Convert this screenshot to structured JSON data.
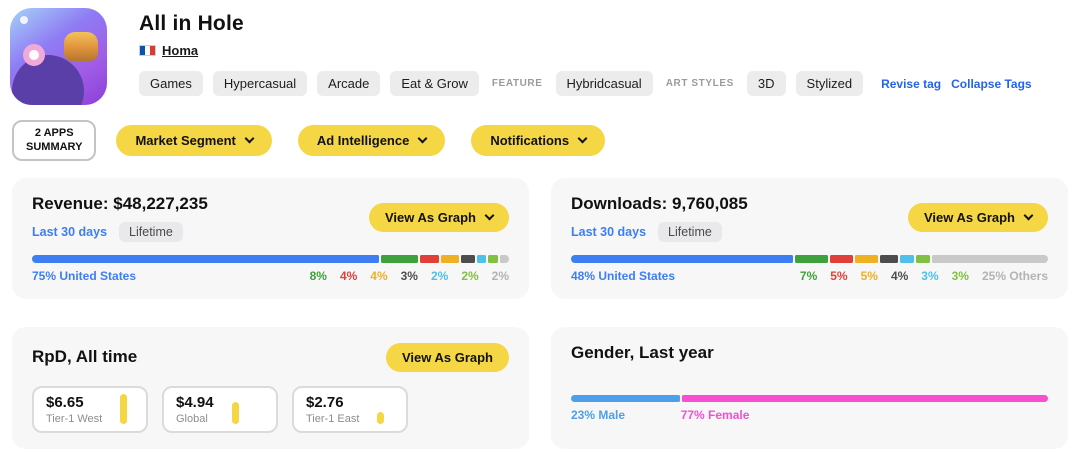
{
  "colors": {
    "accent-yellow": "#F5D644",
    "link-blue": "#2563EB",
    "bar-blue": "#3D7EF2",
    "card-bg": "#F7F7F8"
  },
  "header": {
    "app_title": "All in Hole",
    "publisher": "Homa",
    "publisher_flag": "france-flag",
    "category_tags": [
      "Games",
      "Hypercasual",
      "Arcade",
      "Eat & Grow"
    ],
    "feature_label": "FEATURE",
    "feature_tags": [
      "Hybridcasual"
    ],
    "art_styles_label": "ART STYLES",
    "art_style_tags": [
      "3D",
      "Stylized"
    ],
    "revise_tag_link": "Revise tag",
    "collapse_tags_link": "Collapse Tags"
  },
  "toolbar": {
    "apps_summary_line1": "2 APPS",
    "apps_summary_line2": "SUMMARY",
    "dropdowns": [
      "Market Segment",
      "Ad Intelligence",
      "Notifications"
    ]
  },
  "cards": {
    "revenue": {
      "title": "Revenue: $48,227,235",
      "tabs": [
        "Last 30 days",
        "Lifetime"
      ],
      "active_tab": "Last 30 days",
      "view_as_graph": "View As Graph"
    },
    "downloads": {
      "title": "Downloads: 9,760,085",
      "tabs": [
        "Last 30 days",
        "Lifetime"
      ],
      "active_tab": "Last 30 days",
      "view_as_graph": "View As Graph"
    },
    "rpd": {
      "title": "RpD, All time",
      "view_as_graph": "View As Graph"
    },
    "gender": {
      "title": "Gender, Last year"
    }
  },
  "chart_data": [
    {
      "id": "revenue-by-country",
      "type": "stacked-bar",
      "title": "Revenue: $48,227,235",
      "unit": "%",
      "segments": [
        {
          "label": "75% United States",
          "value": 75,
          "color": "#3D7EF2"
        },
        {
          "label": "8%",
          "value": 8,
          "color": "#3FA13C"
        },
        {
          "label": "4%",
          "value": 4,
          "color": "#E04038"
        },
        {
          "label": "4%",
          "value": 4,
          "color": "#EFB024"
        },
        {
          "label": "3%",
          "value": 3,
          "color": "#4D4D4D"
        },
        {
          "label": "2%",
          "value": 2,
          "color": "#4FC0E8"
        },
        {
          "label": "2%",
          "value": 2,
          "color": "#82C043"
        },
        {
          "label": "2%",
          "value": 2,
          "color": "#C9C9C9",
          "label_color": "#B3B3B3"
        }
      ]
    },
    {
      "id": "downloads-by-country",
      "type": "stacked-bar",
      "title": "Downloads: 9,760,085",
      "unit": "%",
      "segments": [
        {
          "label": "48% United States",
          "value": 48,
          "color": "#3D7EF2"
        },
        {
          "label": "7%",
          "value": 7,
          "color": "#3FA13C"
        },
        {
          "label": "5%",
          "value": 5,
          "color": "#E04038"
        },
        {
          "label": "5%",
          "value": 5,
          "color": "#EFB024"
        },
        {
          "label": "4%",
          "value": 4,
          "color": "#4D4D4D"
        },
        {
          "label": "3%",
          "value": 3,
          "color": "#4FC0E8"
        },
        {
          "label": "3%",
          "value": 3,
          "color": "#82C043"
        },
        {
          "label": "25% Others",
          "value": 25,
          "color": "#C9C9C9",
          "label_color": "#B3B3B3"
        }
      ]
    },
    {
      "id": "rpd-all-time",
      "type": "stat-tiles",
      "title": "RpD, All time",
      "tiles": [
        {
          "value": "$6.65",
          "label": "Tier-1 West",
          "fill_pct": 100
        },
        {
          "value": "$4.94",
          "label": "Global",
          "fill_pct": 74
        },
        {
          "value": "$2.76",
          "label": "Tier-1 East",
          "fill_pct": 42
        }
      ]
    },
    {
      "id": "gender-last-year",
      "type": "stacked-bar",
      "title": "Gender, Last year",
      "unit": "%",
      "segments": [
        {
          "label": "23% Male",
          "value": 23,
          "color": "#4D9FEC"
        },
        {
          "label": "77% Female",
          "value": 77,
          "color": "#F74FD0"
        }
      ]
    }
  ]
}
